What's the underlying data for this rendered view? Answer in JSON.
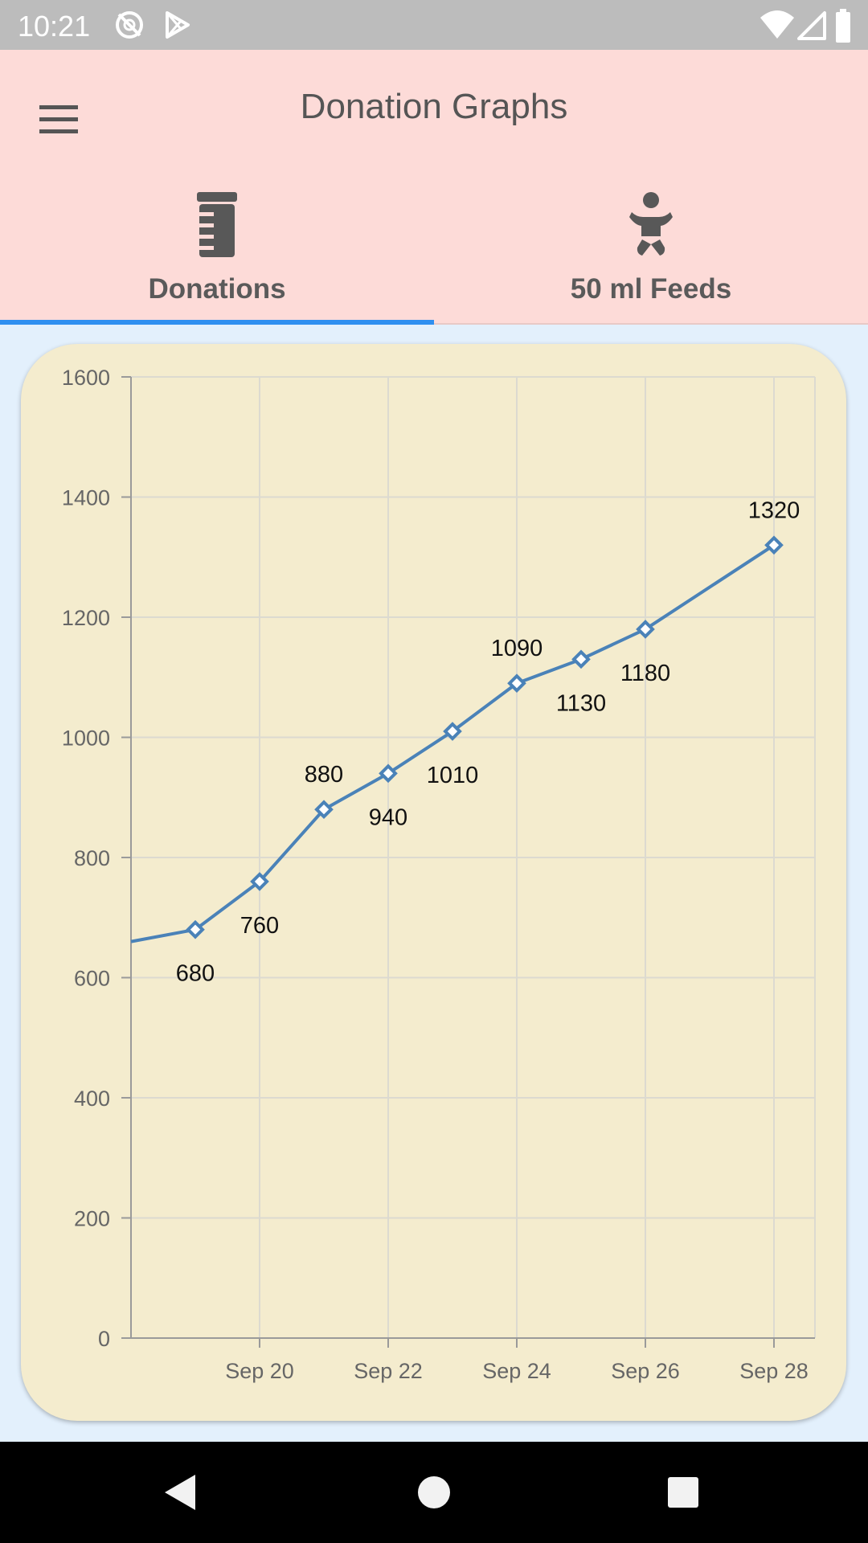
{
  "status_bar": {
    "time": "10:21",
    "icons": [
      "sync-disabled-icon",
      "play-store-icon",
      "wifi-icon",
      "cell-signal-icon",
      "battery-icon"
    ]
  },
  "app_bar": {
    "title": "Donation Graphs",
    "menu_icon": "hamburger-menu-icon"
  },
  "tabs": [
    {
      "label": "Donations",
      "icon": "milk-bottle-icon",
      "selected": true
    },
    {
      "label": "50 ml Feeds",
      "icon": "baby-icon",
      "selected": false
    }
  ],
  "colors": {
    "app_bar": "#fddbd8",
    "background": "#e3f0fc",
    "card": "#f4ecce",
    "line": "#4a82b8",
    "tab_indicator": "#2f8ff0"
  },
  "chart_data": {
    "type": "line",
    "x": [
      "Sep 18",
      "Sep 19",
      "Sep 20",
      "Sep 21",
      "Sep 22",
      "Sep 23",
      "Sep 24",
      "Sep 25",
      "Sep 26",
      "Sep 28"
    ],
    "values": [
      660,
      680,
      760,
      880,
      940,
      1010,
      1090,
      1130,
      1180,
      1320
    ],
    "labeled_points": [
      false,
      true,
      true,
      true,
      true,
      true,
      true,
      true,
      true,
      true
    ],
    "label_side": [
      "none",
      "below",
      "below",
      "above",
      "below",
      "below",
      "above",
      "below",
      "below",
      "above"
    ],
    "x_ticks": [
      "Sep 20",
      "Sep 22",
      "Sep 24",
      "Sep 26",
      "Sep 28"
    ],
    "x_range": [
      "Sep 18",
      "Sep 28"
    ],
    "y_ticks": [
      0,
      200,
      400,
      600,
      800,
      1000,
      1200,
      1400,
      1600
    ],
    "ylim": [
      0,
      1600
    ],
    "grid": true,
    "marker": "diamond"
  },
  "nav_bar": {
    "buttons": [
      "back-icon",
      "home-icon",
      "recents-icon"
    ]
  }
}
